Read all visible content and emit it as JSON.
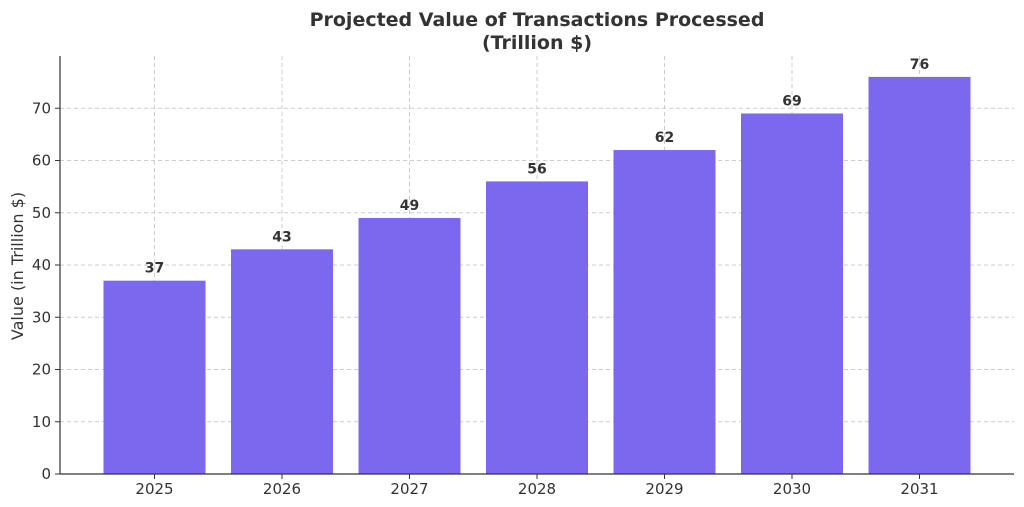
{
  "chart_data": {
    "type": "bar",
    "title_lines": [
      "Projected Value of Transactions Processed",
      "(Trillion $)"
    ],
    "xlabel": "",
    "ylabel": "Value (in Trillion $)",
    "categories": [
      "2025",
      "2026",
      "2027",
      "2028",
      "2029",
      "2030",
      "2031"
    ],
    "values": [
      37,
      43,
      49,
      56,
      62,
      69,
      76
    ],
    "ylim": [
      0,
      80
    ],
    "yticks": [
      0,
      10,
      20,
      30,
      40,
      50,
      60,
      70
    ],
    "grid": true,
    "show_value_labels": true,
    "colors": {
      "bar": "#7B68EE",
      "text": "#333333",
      "grid": "#cccccc"
    }
  }
}
